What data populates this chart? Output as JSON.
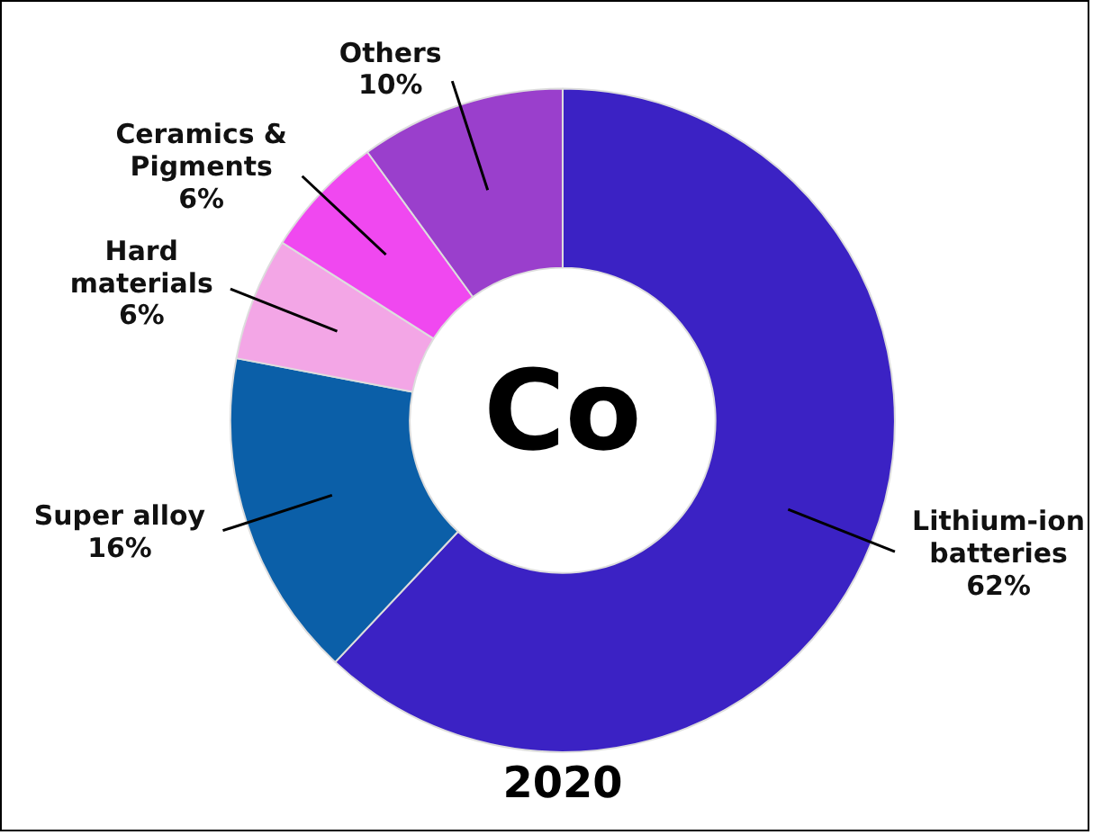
{
  "chart_data": {
    "type": "donut",
    "title": "2020",
    "categories": [
      "Lithium-ion batteries",
      "Super alloy",
      "Hard materials",
      "Ceramics & Pigments",
      "Others"
    ],
    "values": [
      62,
      16,
      6,
      6,
      10
    ],
    "value_labels": [
      "62%",
      "16%",
      "6%",
      "6%",
      "10%"
    ],
    "colors": [
      "#3b22c4",
      "#0b5fa8",
      "#f3a6e6",
      "#f048f0",
      "#9a3fcc"
    ],
    "annotations": [
      "Co"
    ],
    "legend": false
  }
}
